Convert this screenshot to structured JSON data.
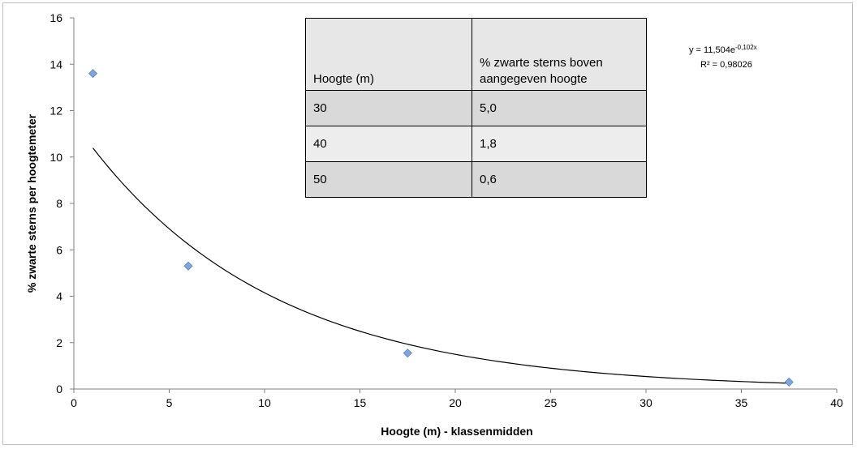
{
  "chart_data": {
    "type": "scatter",
    "xlabel": "Hoogte (m) - klassenmidden",
    "ylabel": "% zwarte sterns per hoogtemeter",
    "xlim": [
      0,
      40
    ],
    "ylim": [
      0,
      16
    ],
    "x_ticks": [
      "0",
      "5",
      "10",
      "15",
      "20",
      "25",
      "30",
      "35",
      "40"
    ],
    "y_ticks": [
      "0",
      "2",
      "4",
      "6",
      "8",
      "10",
      "12",
      "14",
      "16"
    ],
    "points": [
      {
        "x": 1,
        "y": 13.6
      },
      {
        "x": 6,
        "y": 5.3
      },
      {
        "x": 17.5,
        "y": 1.55
      },
      {
        "x": 37.5,
        "y": 0.3
      }
    ],
    "trendline": {
      "type": "exponential",
      "a": 11.504,
      "b": -0.102,
      "x_range": [
        1,
        37.5
      ],
      "equation_main": "y = 11,504e",
      "equation_exp": "-0,102x",
      "r2": "R² = 0,98026"
    },
    "marker_color": "#7ea6dc",
    "grid": false
  },
  "table": {
    "headers": [
      "Hoogte (m)",
      "% zwarte sterns boven aangegeven hoogte"
    ],
    "rows": [
      [
        "30",
        "5,0"
      ],
      [
        "40",
        "1,8"
      ],
      [
        "50",
        "0,6"
      ]
    ]
  }
}
